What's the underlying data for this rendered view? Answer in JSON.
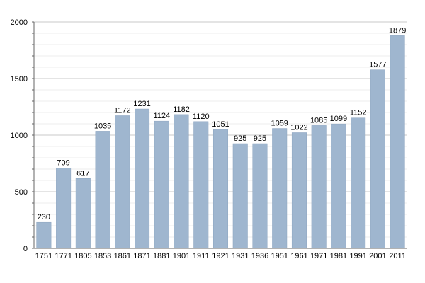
{
  "chart_data": {
    "type": "bar",
    "categories": [
      "1751",
      "1771",
      "1805",
      "1853",
      "1861",
      "1871",
      "1881",
      "1901",
      "1911",
      "1921",
      "1931",
      "1936",
      "1951",
      "1961",
      "1971",
      "1981",
      "1991",
      "2001",
      "2011"
    ],
    "values": [
      230,
      709,
      617,
      1035,
      1172,
      1231,
      1124,
      1182,
      1120,
      1051,
      925,
      925,
      1059,
      1022,
      1085,
      1099,
      1152,
      1577,
      1879
    ],
    "data_labels": [
      "230",
      "709",
      "617",
      "1035",
      "1172",
      "1231",
      "1124",
      "1182",
      "1120",
      "1051",
      "925",
      "925",
      "1059",
      "1022",
      "1085",
      "1099",
      "1152",
      "1577",
      "1879"
    ],
    "y_ticks": [
      0,
      500,
      1000,
      1500,
      2000
    ],
    "y_tick_labels": [
      "0",
      "500",
      "1000",
      "1500",
      "2000"
    ],
    "ylim": [
      0,
      2000
    ],
    "minor_grid_step": 100,
    "grid": true,
    "legend": "none",
    "colors": {
      "bar": "#9fb6cf",
      "bar_edge": "#8ca4bf",
      "major_grid": "#c8c8c8",
      "minor_grid": "#ececec",
      "axis": "#666666"
    }
  }
}
